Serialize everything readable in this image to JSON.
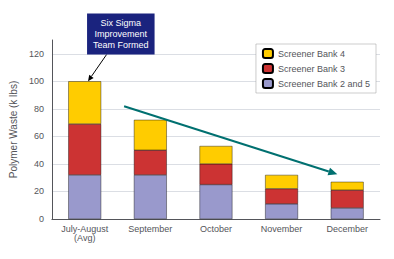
{
  "chart_data": {
    "type": "bar",
    "stacked": true,
    "categories": [
      "July-August\n(Avg)",
      "September",
      "October",
      "November",
      "December"
    ],
    "series": [
      {
        "name": "Screener Bank 2 and 5",
        "color": "#9999cc",
        "values": [
          32,
          32,
          25,
          11,
          8
        ]
      },
      {
        "name": "Screener Bank 3",
        "color": "#cc3333",
        "values": [
          37,
          18,
          15,
          11,
          13
        ]
      },
      {
        "name": "Screener Bank 4",
        "color": "#ffcc00",
        "values": [
          31,
          22,
          13,
          10,
          6
        ]
      }
    ],
    "ylabel": "Polymer Waste (k lbs)",
    "ylim": [
      0,
      130
    ],
    "yticks": [
      0,
      20,
      40,
      60,
      80,
      100,
      120
    ],
    "grid": true,
    "legend": "upper right",
    "annotation": "Six Sigma\nImprovement\nTeam Formed"
  }
}
